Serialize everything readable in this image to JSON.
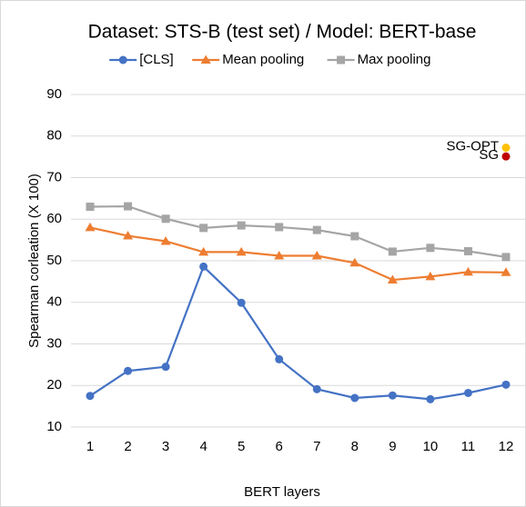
{
  "chart_data": {
    "type": "line",
    "title": "Dataset: STS-B (test set) / Model: BERT-base",
    "x_label": "BERT layers",
    "y_label": "Spearman corleation (X 100)",
    "categories": [
      "1",
      "2",
      "3",
      "4",
      "5",
      "6",
      "7",
      "8",
      "9",
      "10",
      "11",
      "12"
    ],
    "series": [
      {
        "name": "[CLS]",
        "color": "#4472c4",
        "marker": "circle",
        "values": [
          17.5,
          23.5,
          24.5,
          48.6,
          39.9,
          26.3,
          19.1,
          17.0,
          17.6,
          16.7,
          18.2,
          20.2
        ]
      },
      {
        "name": "Mean pooling",
        "color": "#ed7d31",
        "marker": "triangle",
        "values": [
          58.0,
          56.0,
          54.7,
          52.1,
          52.1,
          51.2,
          51.2,
          49.5,
          45.4,
          46.2,
          47.3,
          47.2
        ]
      },
      {
        "name": "Max pooling",
        "color": "#a5a5a5",
        "marker": "square",
        "values": [
          63.0,
          63.1,
          60.1,
          57.9,
          58.5,
          58.1,
          57.4,
          55.9,
          52.2,
          53.1,
          52.3,
          50.9
        ]
      }
    ],
    "points": [
      {
        "label": "SG-OPT",
        "value": 77.2,
        "color": "#ffc000"
      },
      {
        "label": "SG",
        "value": 75.1,
        "color": "#c00000"
      }
    ],
    "ylim": [
      10,
      90
    ],
    "yticks": [
      10,
      20,
      30,
      40,
      50,
      60,
      70,
      80,
      90
    ],
    "grid": true,
    "legend": "top"
  }
}
